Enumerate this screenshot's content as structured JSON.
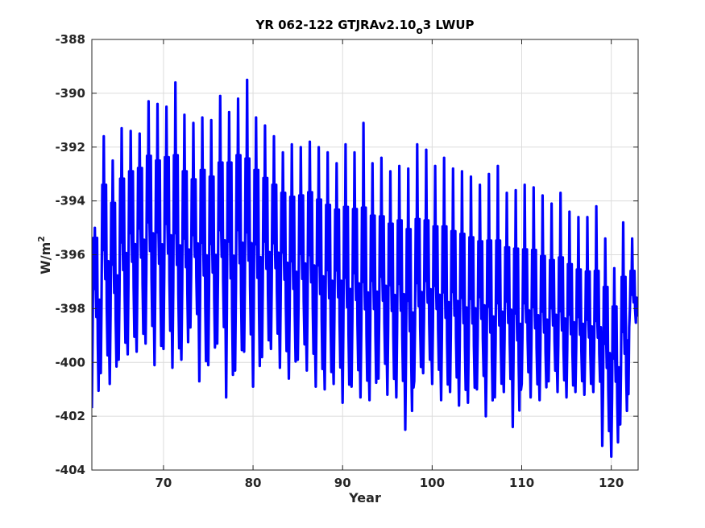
{
  "chart_data": {
    "type": "line",
    "title": {
      "main": "YR 062-122 GTJRAv2.10",
      "subscript": "o",
      "suffix": "3 LWUP"
    },
    "xlabel": "Year",
    "ylabel": {
      "base": "W/m",
      "superscript": "2"
    },
    "xlim": [
      62,
      123
    ],
    "ylim": [
      -404,
      -388
    ],
    "xticks": [
      70,
      80,
      90,
      100,
      110,
      120
    ],
    "yticks": [
      -404,
      -402,
      -400,
      -398,
      -396,
      -394,
      -392,
      -390,
      -388
    ],
    "grid": true,
    "line_color": "#0000ff",
    "series": [
      {
        "x_start": 62.0,
        "x_end": 123.0,
        "cycle_minima": [
          -401.7,
          -400.4,
          -400.8,
          -399.9,
          -399.7,
          -399.6,
          -399.3,
          -400.1,
          -399.5,
          -400.2,
          -399.9,
          -398.7,
          -400.7,
          -400.1,
          -399.3,
          -401.3,
          -400.3,
          -399.6,
          -400.9,
          -399.8,
          -399.5,
          -400.2,
          -400.6,
          -399.9,
          -400.3,
          -400.9,
          -401.0,
          -400.8,
          -401.5,
          -400.9,
          -401.3,
          -401.4,
          -400.6,
          -401.2,
          -401.3,
          -402.5,
          -400.7,
          -400.4,
          -400.8,
          -401.4,
          -401.1,
          -401.6,
          -401.5,
          -401.0,
          -402.0,
          -401.3,
          -401.1,
          -402.4,
          -400.8,
          -401.3,
          -401.4,
          -400.7,
          -401.1,
          -401.3,
          -401.1,
          -401.2,
          -401.1,
          -403.1,
          -403.5,
          -402.3,
          -398.7
        ],
        "cycle_maxima": [
          -395.0,
          -391.6,
          -392.5,
          -391.3,
          -391.4,
          -391.5,
          -390.3,
          -390.4,
          -390.5,
          -389.6,
          -390.8,
          -391.1,
          -390.9,
          -391.0,
          -390.1,
          -390.7,
          -390.2,
          -389.5,
          -390.9,
          -391.2,
          -391.6,
          -392.2,
          -391.9,
          -392.0,
          -391.8,
          -392.0,
          -392.2,
          -392.6,
          -391.9,
          -392.2,
          -391.1,
          -392.6,
          -392.4,
          -392.9,
          -392.7,
          -392.8,
          -391.9,
          -392.1,
          -392.7,
          -392.4,
          -392.8,
          -392.9,
          -393.1,
          -393.4,
          -393.0,
          -392.7,
          -393.7,
          -393.6,
          -393.4,
          -393.5,
          -393.8,
          -394.1,
          -393.7,
          -394.4,
          -394.6,
          -394.6,
          -394.2,
          -395.4,
          -396.5,
          -394.8,
          -395.4
        ],
        "secondary_peak_level": [
          -395.5,
          -394.0,
          -394.6,
          -393.8,
          -393.4,
          -393.2,
          -393.0,
          -393.2,
          -393.0,
          -393.2,
          -393.6,
          -393.9,
          -393.5,
          -393.8,
          -393.4,
          -393.2,
          -393.0,
          -393.4,
          -393.5,
          -393.8,
          -394.0,
          -394.2,
          -394.5,
          -394.4,
          -394.3,
          -394.6,
          -394.8,
          -394.9,
          -395.0,
          -395.0,
          -395.3,
          -395.2,
          -395.3,
          -395.5,
          -395.4,
          -395.8,
          -395.6,
          -395.6,
          -395.7,
          -395.8,
          -395.9,
          -396.0,
          -396.1,
          -396.2,
          -396.3,
          -396.4,
          -396.4,
          -396.5,
          -396.6,
          -396.6,
          -396.8,
          -396.9,
          -396.9,
          -397.0,
          -397.2,
          -397.3,
          -397.4,
          -397.8,
          -398.4,
          -397.5,
          -397.0
        ]
      }
    ]
  }
}
